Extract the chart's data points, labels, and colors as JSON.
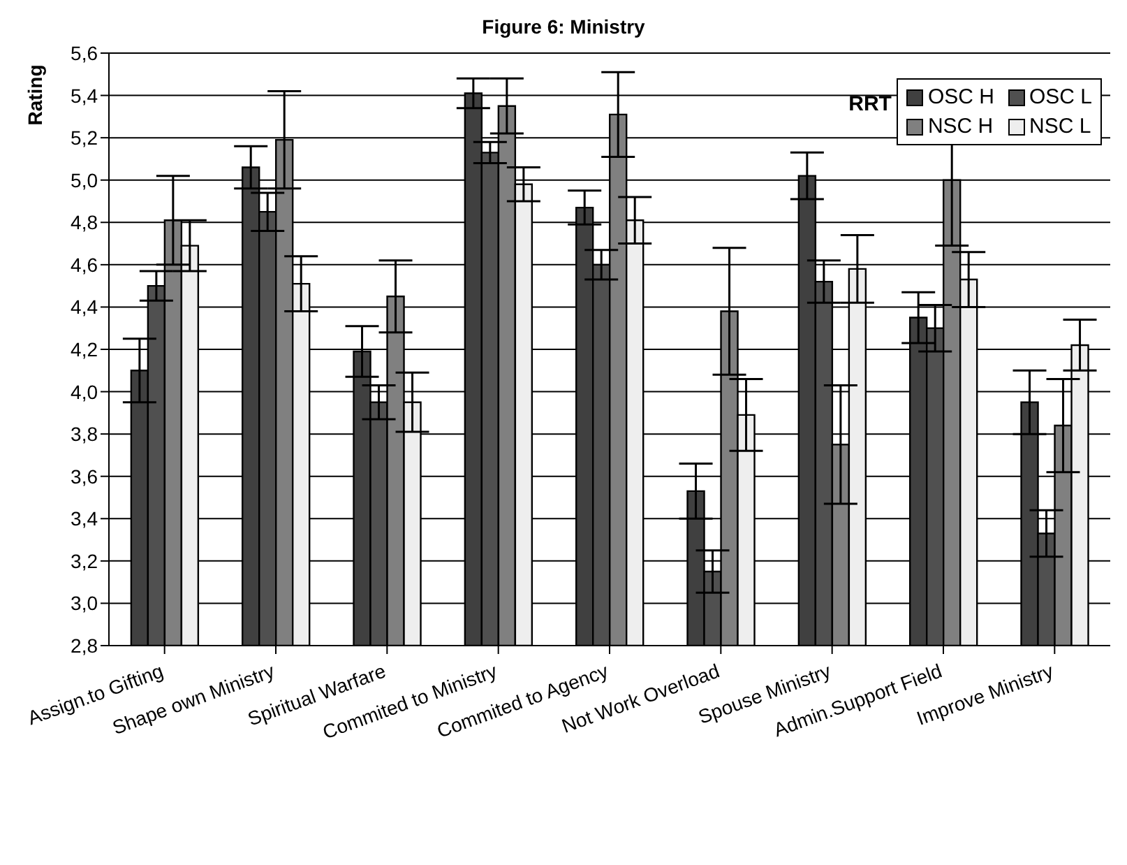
{
  "chart_data": {
    "type": "bar",
    "title": "Figure 6:  Ministry",
    "ylabel": "Rating",
    "legend_title": "RRT",
    "categories": [
      "Assign.to Gifting",
      "Shape own Ministry",
      "Spiritual Warfare",
      "Commited to Ministry",
      "Commited to Agency",
      "Not Work Overload",
      "Spouse Ministry",
      "Admin.Support Field",
      "Improve Ministry"
    ],
    "series": [
      {
        "name": "OSC H",
        "color": "#404040",
        "values": [
          4.1,
          5.06,
          4.19,
          5.41,
          4.87,
          3.53,
          5.02,
          4.35,
          3.95
        ],
        "errors": [
          0.15,
          0.1,
          0.12,
          0.07,
          0.08,
          0.13,
          0.11,
          0.12,
          0.15
        ]
      },
      {
        "name": "OSC L",
        "color": "#505050",
        "values": [
          4.5,
          4.85,
          3.95,
          5.13,
          4.6,
          3.15,
          4.52,
          4.3,
          3.33
        ],
        "errors": [
          0.07,
          0.09,
          0.08,
          0.05,
          0.07,
          0.1,
          0.1,
          0.11,
          0.11
        ]
      },
      {
        "name": "NSC H",
        "color": "#808080",
        "values": [
          4.81,
          5.19,
          4.45,
          5.35,
          5.31,
          4.38,
          3.75,
          5.0,
          3.84
        ],
        "errors": [
          0.21,
          0.23,
          0.17,
          0.13,
          0.2,
          0.3,
          0.28,
          0.31,
          0.22
        ]
      },
      {
        "name": "NSC L",
        "color": "#eeeeee",
        "values": [
          4.69,
          4.51,
          3.95,
          4.98,
          4.81,
          3.89,
          4.58,
          4.53,
          4.22
        ],
        "errors": [
          0.12,
          0.13,
          0.14,
          0.08,
          0.11,
          0.17,
          0.16,
          0.13,
          0.12
        ]
      }
    ],
    "ylim": [
      2.8,
      5.6
    ],
    "yticks": [
      {
        "value": 2.8,
        "label": "2,8"
      },
      {
        "value": 3.0,
        "label": "3,0"
      },
      {
        "value": 3.2,
        "label": "3,2"
      },
      {
        "value": 3.4,
        "label": "3,4"
      },
      {
        "value": 3.6,
        "label": "3,6"
      },
      {
        "value": 3.8,
        "label": "3,8"
      },
      {
        "value": 4.0,
        "label": "4,0"
      },
      {
        "value": 4.2,
        "label": "4,2"
      },
      {
        "value": 4.4,
        "label": "4,4"
      },
      {
        "value": 4.6,
        "label": "4,6"
      },
      {
        "value": 4.8,
        "label": "4,8"
      },
      {
        "value": 5.0,
        "label": "5,0"
      },
      {
        "value": 5.2,
        "label": "5,2"
      },
      {
        "value": 5.4,
        "label": "5,4"
      },
      {
        "value": 5.6,
        "label": "5,6"
      }
    ],
    "grid": "y",
    "legend": "top right"
  }
}
